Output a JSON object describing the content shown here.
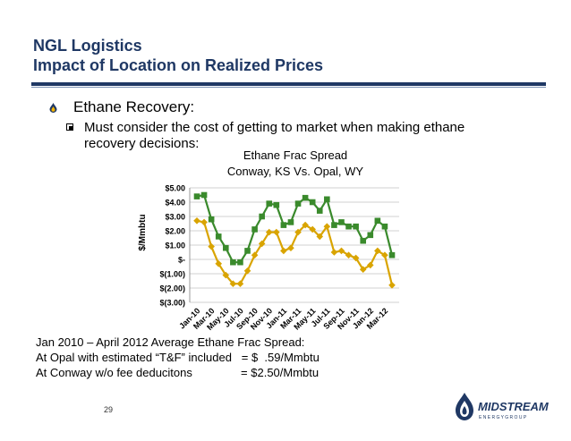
{
  "slide": {
    "title_line1": "NGL Logistics",
    "title_line2": "Impact of Location on Realized Prices",
    "bullet": "Ethane Recovery:",
    "sub_bullet": "Must consider the cost of getting to market when making ethane recovery decisions:",
    "notes": [
      "Jan 2010 – April 2012 Average Ethane Frac Spread:",
      "At Opal with estimated “T&F” included   = $  .59/Mmbtu",
      "At Conway w/o fee deducitons               = $2.50/Mmbtu"
    ],
    "page_number": "29",
    "logo_name": "MIDSTREAM",
    "logo_sub": "E N E R G Y   G R O U P",
    "colors": {
      "title": "#1f3864",
      "conway": "#3a8a2c",
      "opal": "#d9a400"
    }
  },
  "chart_data": {
    "type": "line",
    "title": "Ethane Frac Spread",
    "subtitle": "Conway, KS Vs. Opal, WY",
    "ylabel": "$/Mmbtu",
    "ylim": [
      -3,
      5
    ],
    "yticks": [
      5,
      4,
      3,
      2,
      1,
      0,
      -1,
      -2,
      -3
    ],
    "ytick_labels": [
      "$5.00",
      "$4.00",
      "$3.00",
      "$2.00",
      "$1.00",
      "$-",
      "$(1.00)",
      "$(2.00)",
      "$(3.00)"
    ],
    "grid": true,
    "categories": [
      "Jan-10",
      "Feb-10",
      "Mar-10",
      "Apr-10",
      "May-10",
      "Jun-10",
      "Jul-10",
      "Aug-10",
      "Sep-10",
      "Oct-10",
      "Nov-10",
      "Dec-10",
      "Jan-11",
      "Feb-11",
      "Mar-11",
      "Apr-11",
      "May-11",
      "Jun-11",
      "Jul-11",
      "Aug-11",
      "Sep-11",
      "Oct-11",
      "Nov-11",
      "Dec-11",
      "Jan-12",
      "Feb-12",
      "Mar-12",
      "Apr-12"
    ],
    "xtick_labels": [
      "Jan-10",
      "Mar-10",
      "May-10",
      "Jul-10",
      "Sep-10",
      "Nov-10",
      "Jan-11",
      "Mar-11",
      "May-11",
      "Jul-11",
      "Sep-11",
      "Nov-11",
      "Jan-12",
      "Mar-12"
    ],
    "series": [
      {
        "values": [
          4.4,
          4.5,
          2.8,
          1.6,
          0.8,
          -0.2,
          -0.2,
          0.6,
          2.1,
          3.0,
          3.9,
          3.8,
          2.4,
          2.6,
          3.9,
          4.3,
          4.0,
          3.4,
          4.2,
          2.4,
          2.6,
          2.3,
          2.3,
          1.3,
          1.7,
          2.7,
          2.3,
          0.3
        ]
      },
      {
        "values": [
          2.7,
          2.6,
          0.9,
          -0.3,
          -1.1,
          -1.7,
          -1.7,
          -0.8,
          0.3,
          1.1,
          1.9,
          1.9,
          0.6,
          0.8,
          1.9,
          2.4,
          2.1,
          1.6,
          2.3,
          0.5,
          0.6,
          0.3,
          0.1,
          -0.7,
          -0.4,
          0.6,
          0.3,
          -1.8
        ]
      }
    ]
  }
}
